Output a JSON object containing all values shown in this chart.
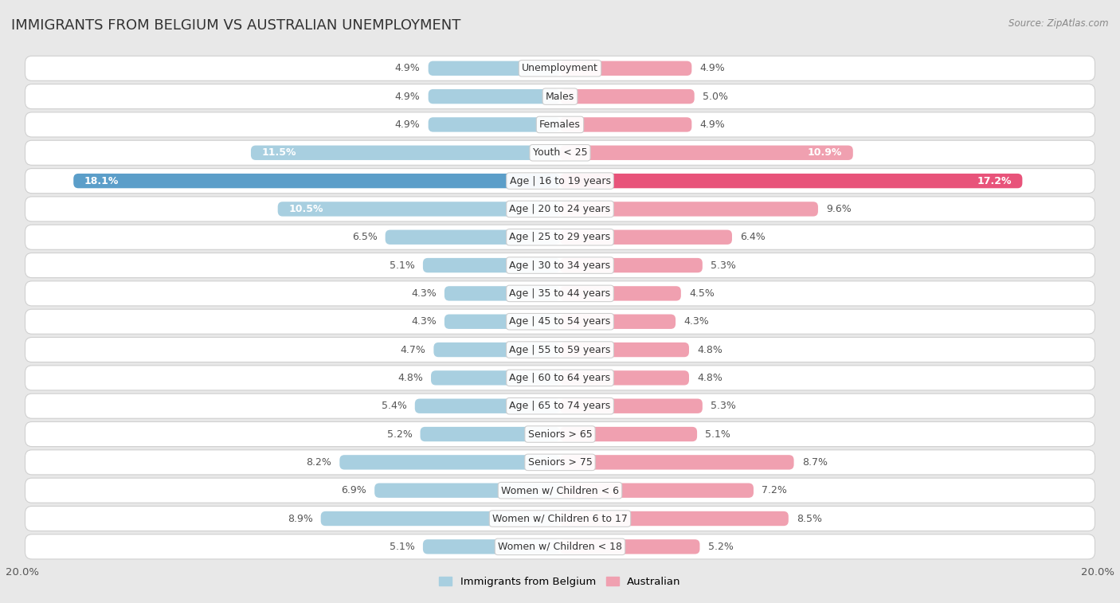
{
  "title": "IMMIGRANTS FROM BELGIUM VS AUSTRALIAN UNEMPLOYMENT",
  "source": "Source: ZipAtlas.com",
  "categories": [
    "Unemployment",
    "Males",
    "Females",
    "Youth < 25",
    "Age | 16 to 19 years",
    "Age | 20 to 24 years",
    "Age | 25 to 29 years",
    "Age | 30 to 34 years",
    "Age | 35 to 44 years",
    "Age | 45 to 54 years",
    "Age | 55 to 59 years",
    "Age | 60 to 64 years",
    "Age | 65 to 74 years",
    "Seniors > 65",
    "Seniors > 75",
    "Women w/ Children < 6",
    "Women w/ Children 6 to 17",
    "Women w/ Children < 18"
  ],
  "left_values": [
    4.9,
    4.9,
    4.9,
    11.5,
    18.1,
    10.5,
    6.5,
    5.1,
    4.3,
    4.3,
    4.7,
    4.8,
    5.4,
    5.2,
    8.2,
    6.9,
    8.9,
    5.1
  ],
  "right_values": [
    4.9,
    5.0,
    4.9,
    10.9,
    17.2,
    9.6,
    6.4,
    5.3,
    4.5,
    4.3,
    4.8,
    4.8,
    5.3,
    5.1,
    8.7,
    7.2,
    8.5,
    5.2
  ],
  "left_color_normal": "#a8cfe0",
  "left_color_highlight": "#5b9ec9",
  "right_color_normal": "#f0a0b0",
  "right_color_highlight": "#e8537a",
  "highlight_row": 4,
  "xlim": 20.0,
  "bg_color": "#e8e8e8",
  "row_bg_color": "#ffffff",
  "row_border_color": "#d0d0d0",
  "label_fontsize": 9.0,
  "value_fontsize": 9.0,
  "title_fontsize": 13,
  "legend_left_label": "Immigrants from Belgium",
  "legend_right_label": "Australian"
}
